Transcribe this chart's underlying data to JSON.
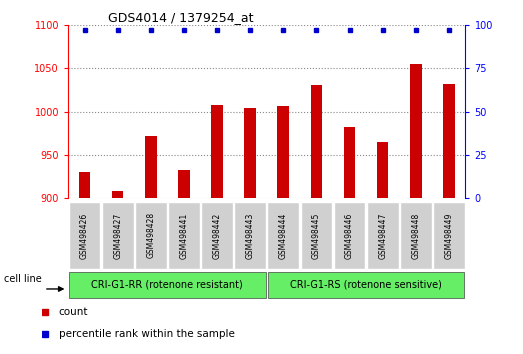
{
  "title": "GDS4014 / 1379254_at",
  "samples": [
    "GSM498426",
    "GSM498427",
    "GSM498428",
    "GSM498441",
    "GSM498442",
    "GSM498443",
    "GSM498444",
    "GSM498445",
    "GSM498446",
    "GSM498447",
    "GSM498448",
    "GSM498449"
  ],
  "counts": [
    930,
    908,
    972,
    932,
    1008,
    1004,
    1006,
    1030,
    982,
    965,
    1055,
    1032
  ],
  "percentile_ranks": [
    97,
    97,
    97,
    97,
    97,
    97,
    97,
    97,
    97,
    97,
    97,
    97
  ],
  "bar_color": "#cc0000",
  "dot_color": "#0000cc",
  "ylim_left": [
    900,
    1100
  ],
  "ylim_right": [
    0,
    100
  ],
  "yticks_left": [
    900,
    950,
    1000,
    1050,
    1100
  ],
  "yticks_right": [
    0,
    25,
    50,
    75,
    100
  ],
  "group1_label": "CRI-G1-RR (rotenone resistant)",
  "group2_label": "CRI-G1-RS (rotenone sensitive)",
  "group1_count": 6,
  "group2_count": 6,
  "cell_line_label": "cell line",
  "legend_count_label": "count",
  "legend_percentile_label": "percentile rank within the sample",
  "group_bg_color": "#66ee66",
  "tick_bg_color": "#d0d0d0",
  "background_color": "#ffffff",
  "dotted_grid_color": "#888888",
  "bar_width": 0.35
}
